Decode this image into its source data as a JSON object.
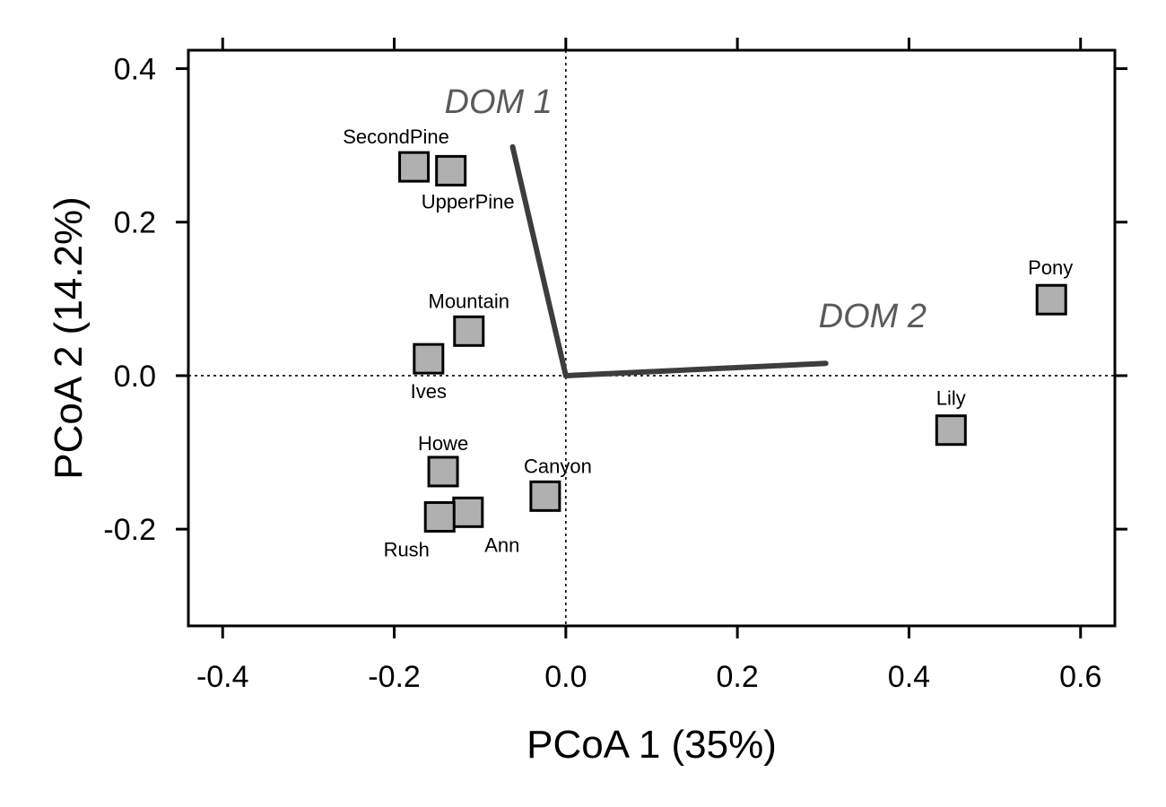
{
  "chart_data": {
    "type": "scatter",
    "title": "",
    "xlabel": "PCoA 1 (35%)",
    "ylabel": "PCoA 2 (14.2%)",
    "xlim": [
      -0.44,
      0.64
    ],
    "ylim": [
      -0.326,
      0.424
    ],
    "x_ticks": [
      "-0.4",
      "-0.2",
      "0.0",
      "0.2",
      "0.4",
      "0.6"
    ],
    "y_ticks": [
      "-0.2",
      "0.0",
      "0.2",
      "0.4"
    ],
    "reference_lines": {
      "x": 0.0,
      "y": 0.0,
      "style": "dotted"
    },
    "grid": false,
    "marker": {
      "shape": "square",
      "fill": "#b0b0b0",
      "stroke": "#000000"
    },
    "points": [
      {
        "label": "SecondPine",
        "x": -0.177,
        "y": 0.272
      },
      {
        "label": "UpperPine",
        "x": -0.134,
        "y": 0.267
      },
      {
        "label": "Mountain",
        "x": -0.113,
        "y": 0.058
      },
      {
        "label": "Ives",
        "x": -0.16,
        "y": 0.022
      },
      {
        "label": "Howe",
        "x": -0.143,
        "y": -0.125
      },
      {
        "label": "Canyon",
        "x": -0.024,
        "y": -0.157
      },
      {
        "label": "Ann",
        "x": -0.114,
        "y": -0.178
      },
      {
        "label": "Rush",
        "x": -0.147,
        "y": -0.184
      },
      {
        "label": "Pony",
        "x": 0.566,
        "y": 0.099
      },
      {
        "label": "Lily",
        "x": 0.449,
        "y": -0.071
      }
    ],
    "vectors": [
      {
        "label": "DOM 1",
        "x": -0.062,
        "y": 0.298,
        "color": "#3d3d3d"
      },
      {
        "label": "DOM 2",
        "x": 0.303,
        "y": 0.016,
        "color": "#3d3d3d"
      }
    ]
  }
}
